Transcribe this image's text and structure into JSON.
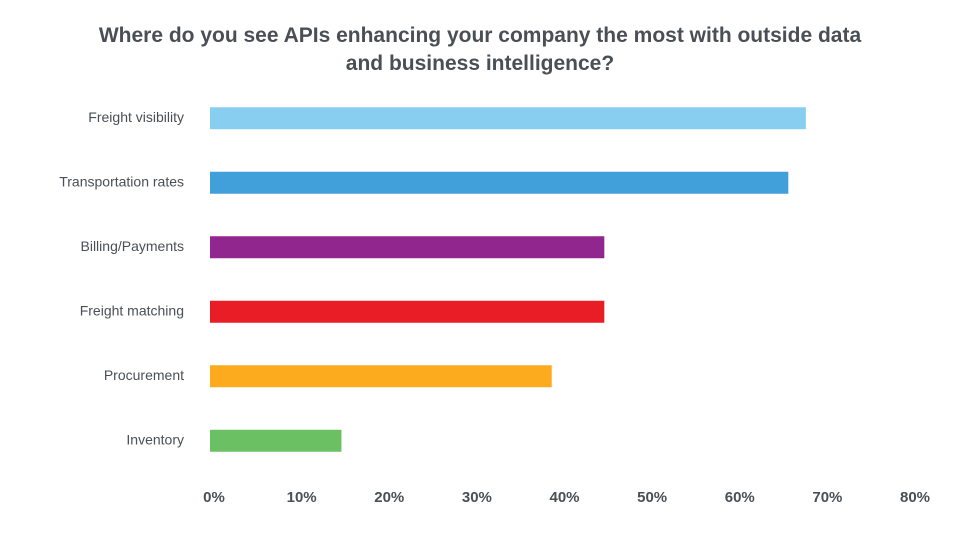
{
  "chart_data": {
    "type": "hbar",
    "title": "Where do you see APIs enhancing your company the most with outside data and business intelligence?",
    "categories": [
      "Freight visibility",
      "Transportation rates",
      "Billing/Payments",
      "Freight matching",
      "Procurement",
      "Inventory"
    ],
    "values": [
      68,
      66,
      45,
      45,
      39,
      15
    ],
    "colors": [
      "#87cef0",
      "#41a0da",
      "#91268f",
      "#e91d25",
      "#fbab1d",
      "#6cc064"
    ],
    "xlim": [
      0,
      80
    ],
    "xticks": [
      {
        "value": 0,
        "label": "0%"
      },
      {
        "value": 10,
        "label": "10%"
      },
      {
        "value": 20,
        "label": "20%"
      },
      {
        "value": 30,
        "label": "30%"
      },
      {
        "value": 40,
        "label": "40%"
      },
      {
        "value": 50,
        "label": "50%"
      },
      {
        "value": 60,
        "label": "60%"
      },
      {
        "value": 70,
        "label": "70%"
      },
      {
        "value": 80,
        "label": "80%"
      }
    ],
    "grid": false
  }
}
